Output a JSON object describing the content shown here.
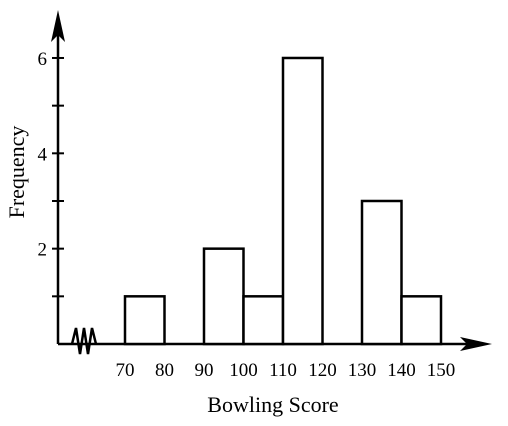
{
  "chart_data": {
    "type": "bar",
    "title": "",
    "xlabel": "Bowling Score",
    "ylabel": "Frequency",
    "x_tick_labels": [
      "70",
      "80",
      "90",
      "100",
      "110",
      "120",
      "130",
      "140",
      "150"
    ],
    "y_tick_labels": [
      "2",
      "4",
      "6"
    ],
    "bins": [
      {
        "from": 70,
        "to": 80,
        "value": 1
      },
      {
        "from": 80,
        "to": 90,
        "value": 0
      },
      {
        "from": 90,
        "to": 100,
        "value": 2
      },
      {
        "from": 100,
        "to": 110,
        "value": 1
      },
      {
        "from": 110,
        "to": 120,
        "value": 6
      },
      {
        "from": 120,
        "to": 130,
        "value": 0
      },
      {
        "from": 130,
        "to": 140,
        "value": 3
      },
      {
        "from": 140,
        "to": 150,
        "value": 1
      }
    ],
    "xlim": [
      70,
      150
    ],
    "ylim": [
      0,
      6
    ],
    "grid": false,
    "axis_break": true
  }
}
